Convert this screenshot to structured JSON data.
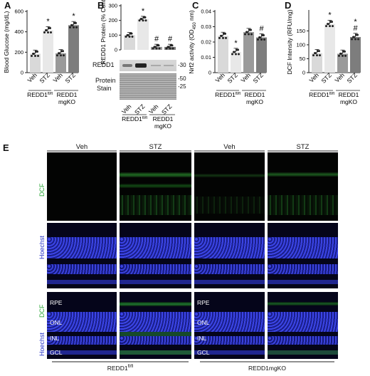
{
  "panel_labels": [
    "A",
    "B",
    "C",
    "D",
    "E"
  ],
  "colors": {
    "veh_light": "#d9d9d9",
    "stz_light": "#e8e8e8",
    "veh_dark": "#9a9a9a",
    "stz_dark": "#7d7d7d",
    "dcf_green": "#2fbf3a",
    "hoechst_blue": "#3a44ff"
  },
  "x_labels": [
    "Veh",
    "STZ",
    "Veh",
    "STZ"
  ],
  "groups": {
    "flfl_base": "REDD1",
    "flfl_sup": "fl/fl",
    "mgko_line1": "REDD1",
    "mgko_line2": "mgKO"
  },
  "blot": {
    "redd1_label": "REDD1",
    "protein_label": "Protein",
    "stain_label": "Stain",
    "mw_30": "-30",
    "mw_50": "-50",
    "mw_25": "-25"
  },
  "panel_e": {
    "col_headers": [
      "Veh",
      "STZ",
      "Veh",
      "STZ"
    ],
    "row_dcf": "DCF",
    "row_hoechst": "Hoechst",
    "layers": [
      "RPE",
      "ONL",
      "INL",
      "GCL"
    ],
    "bottom_left": "REDD1",
    "bottom_left_sup": "fl/fl",
    "bottom_right": "REDD1mgKO"
  },
  "chart_data": [
    {
      "panel": "A",
      "type": "bar",
      "ylabel": "Blood Glucose (mg/dL)",
      "categories": [
        "Veh",
        "STZ",
        "Veh",
        "STZ"
      ],
      "values": [
        185,
        415,
        190,
        465
      ],
      "ylim": [
        0,
        600
      ],
      "yticks": [
        "0",
        "200",
        "400",
        "600"
      ],
      "significance": [
        "",
        "*",
        "",
        "*"
      ]
    },
    {
      "panel": "B",
      "type": "bar",
      "ylabel": "REDD1 Protein (% Control)",
      "categories": [
        "Veh",
        "STZ",
        "Veh",
        "STZ"
      ],
      "values": [
        100,
        210,
        20,
        20
      ],
      "ylim": [
        0,
        300
      ],
      "yticks": [
        "0",
        "100",
        "200",
        "300"
      ],
      "significance": [
        "",
        "*",
        "#",
        "#"
      ]
    },
    {
      "panel": "C",
      "type": "bar",
      "ylabel": "Nrf2 activity (OD",
      "ylabel_sub": "450",
      "ylabel_unit": " nm)",
      "categories": [
        "Veh",
        "STZ",
        "Veh",
        "STZ"
      ],
      "values": [
        0.024,
        0.0135,
        0.0265,
        0.023
      ],
      "ylim": [
        0,
        0.04
      ],
      "yticks": [
        "0",
        "0.01",
        "0.02",
        "0.03",
        "0.04"
      ],
      "significance": [
        "",
        "*",
        "",
        "#"
      ]
    },
    {
      "panel": "D",
      "type": "bar",
      "ylabel": "DCF Intensity (RFU/mg)",
      "categories": [
        "Veh",
        "STZ",
        "Veh",
        "STZ"
      ],
      "values": [
        70,
        175,
        68,
        128
      ],
      "ylim": [
        0,
        220
      ],
      "yticks": [
        "0",
        "50",
        "100",
        "150"
      ],
      "significance": [
        "",
        "*",
        "",
        "#*"
      ]
    }
  ]
}
